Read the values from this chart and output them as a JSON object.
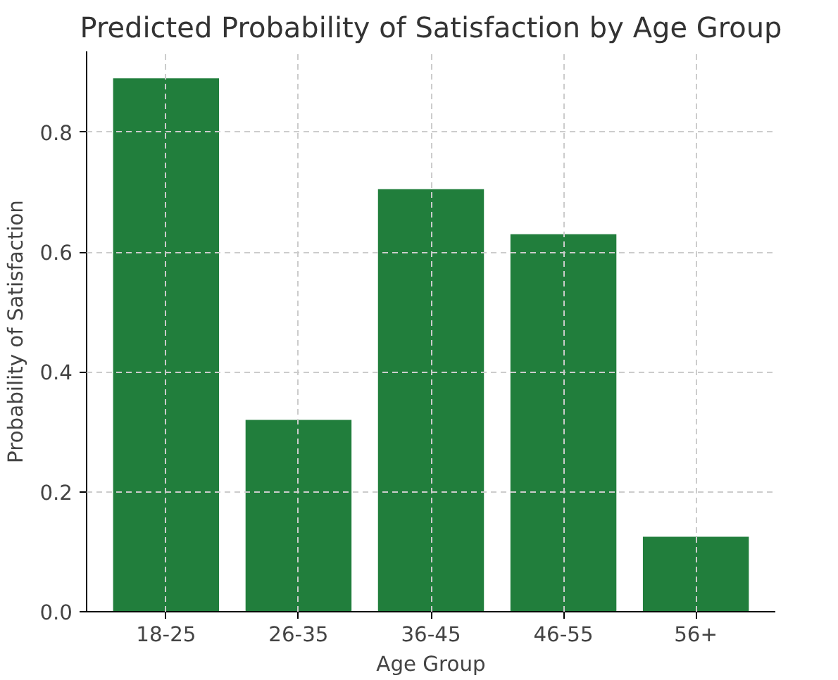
{
  "chart_data": {
    "type": "bar",
    "title": "Predicted Probability of Satisfaction by Age Group",
    "xlabel": "Age Group",
    "ylabel": "Probability of Satisfaction",
    "categories": [
      "18-25",
      "26-35",
      "36-45",
      "46-55",
      "56+"
    ],
    "values": [
      0.89,
      0.32,
      0.705,
      0.63,
      0.125
    ],
    "color": "#217e3c",
    "ylim": [
      0,
      0.935
    ],
    "yticks": [
      {
        "value": 0,
        "label": "0.0"
      },
      {
        "value": 0.2,
        "label": "0.2"
      },
      {
        "value": 0.4,
        "label": "0.4"
      },
      {
        "value": 0.6,
        "label": "0.6"
      },
      {
        "value": 0.8,
        "label": "0.8"
      }
    ],
    "grid": true
  }
}
